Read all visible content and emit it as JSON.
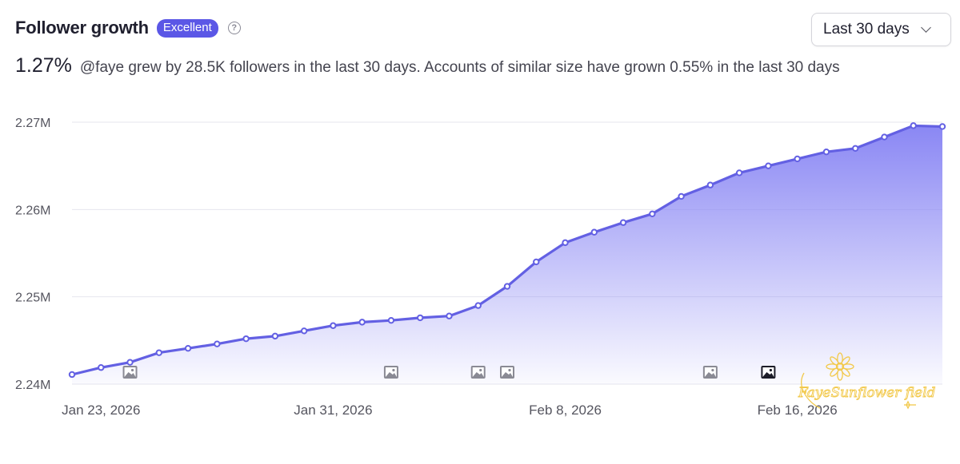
{
  "header": {
    "title": "Follower growth",
    "badge": "Excellent",
    "help_icon": "question-circle-icon"
  },
  "range_select": {
    "selected": "Last 30 days",
    "icon": "chevron-down-icon"
  },
  "summary": {
    "growth_pct": "1.27%",
    "description": "@faye grew by 28.5K followers in the last 30 days. Accounts of similar size have grown 0.55% in the last 30 days"
  },
  "colors": {
    "accent": "#5b57e6",
    "line": "#6360e3",
    "area_top": "#8a87f4",
    "media_icon": "#8a8a94",
    "media_icon_dark": "#1c1c28",
    "watermark": "#f2c94c"
  },
  "watermark": {
    "text": "FayeSunflower field"
  },
  "chart_data": {
    "type": "area",
    "title": "Follower growth",
    "xlabel": "",
    "ylabel": "",
    "ylim": [
      2240000,
      2270000
    ],
    "yticks": [
      2240000,
      2250000,
      2260000,
      2270000
    ],
    "ytick_labels": [
      "2.24M",
      "2.25M",
      "2.26M",
      "2.27M"
    ],
    "grid": true,
    "x_range": [
      0,
      30
    ],
    "xticks": [
      {
        "x": 1,
        "label": "Jan 23, 2026"
      },
      {
        "x": 9,
        "label": "Jan 31, 2026"
      },
      {
        "x": 17,
        "label": "Feb 8, 2026"
      },
      {
        "x": 25,
        "label": "Feb 16, 2026"
      }
    ],
    "series": [
      {
        "name": "Followers",
        "x": [
          0,
          1,
          2,
          3,
          4,
          5,
          6,
          7,
          8,
          9,
          10,
          11,
          12,
          13,
          14,
          15,
          16,
          17,
          18,
          19,
          20,
          21,
          22,
          23,
          24,
          25,
          26,
          27,
          28,
          29,
          30
        ],
        "values": [
          2241100,
          2241900,
          2242500,
          2243600,
          2244100,
          2244600,
          2245200,
          2245500,
          2246100,
          2246700,
          2247100,
          2247300,
          2247600,
          2247800,
          2249000,
          2251200,
          2254000,
          2256200,
          2257400,
          2258500,
          2259500,
          2261500,
          2262800,
          2264200,
          2265000,
          2265800,
          2266600,
          2267000,
          2268300,
          2269600,
          2269500
        ]
      }
    ],
    "media_markers": [
      {
        "x": 2,
        "style": "light",
        "icon": "image-icon"
      },
      {
        "x": 11,
        "style": "light",
        "icon": "image-icon"
      },
      {
        "x": 14,
        "style": "light",
        "icon": "image-icon"
      },
      {
        "x": 15,
        "style": "light",
        "icon": "image-icon"
      },
      {
        "x": 22,
        "style": "light",
        "icon": "image-icon"
      },
      {
        "x": 24,
        "style": "dark",
        "icon": "image-icon"
      }
    ]
  }
}
